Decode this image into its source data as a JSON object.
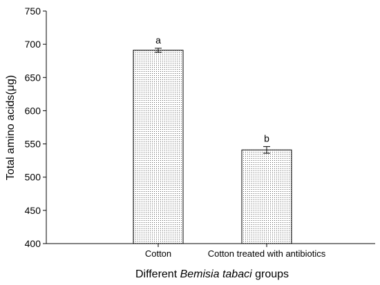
{
  "chart_data": {
    "type": "bar",
    "title": "",
    "ylabel": "Total amino acids(μg)",
    "xlabel_parts": [
      {
        "text": "Different ",
        "italic": false
      },
      {
        "text": "Bemisia tabaci",
        "italic": true
      },
      {
        "text": " groups",
        "italic": false
      }
    ],
    "ylim": [
      400,
      750
    ],
    "yticks": [
      400,
      450,
      500,
      550,
      600,
      650,
      700,
      750
    ],
    "categories": [
      "Cotton",
      "Cotton treated with antibiotics"
    ],
    "values": [
      691,
      541
    ],
    "errors": [
      3,
      5
    ],
    "significance": [
      "a",
      "b"
    ],
    "grid": false,
    "bar_fill": "dotted"
  }
}
